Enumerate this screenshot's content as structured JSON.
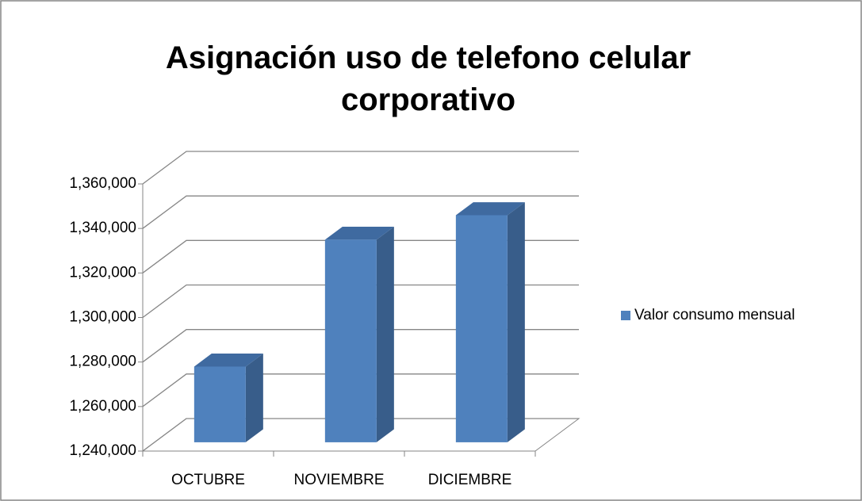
{
  "chart_data": {
    "type": "bar3d",
    "title": "Asignación  uso de telefono celular corporativo",
    "categories": [
      "OCTUBRE",
      "NOVIEMBRE",
      "DICIEMBRE"
    ],
    "series": [
      {
        "name": "Valor consumo mensual",
        "color": "#4f81bd",
        "values": [
          1274000,
          1331000,
          1342000
        ]
      }
    ],
    "ylim": [
      1240000,
      1360000
    ],
    "yticks": [
      {
        "value": 1240000,
        "label": "1,240,000"
      },
      {
        "value": 1260000,
        "label": "1,260,000"
      },
      {
        "value": 1280000,
        "label": "1,280,000"
      },
      {
        "value": 1300000,
        "label": "1,300,000"
      },
      {
        "value": 1320000,
        "label": "1,320,000"
      },
      {
        "value": 1340000,
        "label": "1,340,000"
      },
      {
        "value": 1360000,
        "label": "1,360,000"
      }
    ],
    "grid": true,
    "legend": "right"
  }
}
